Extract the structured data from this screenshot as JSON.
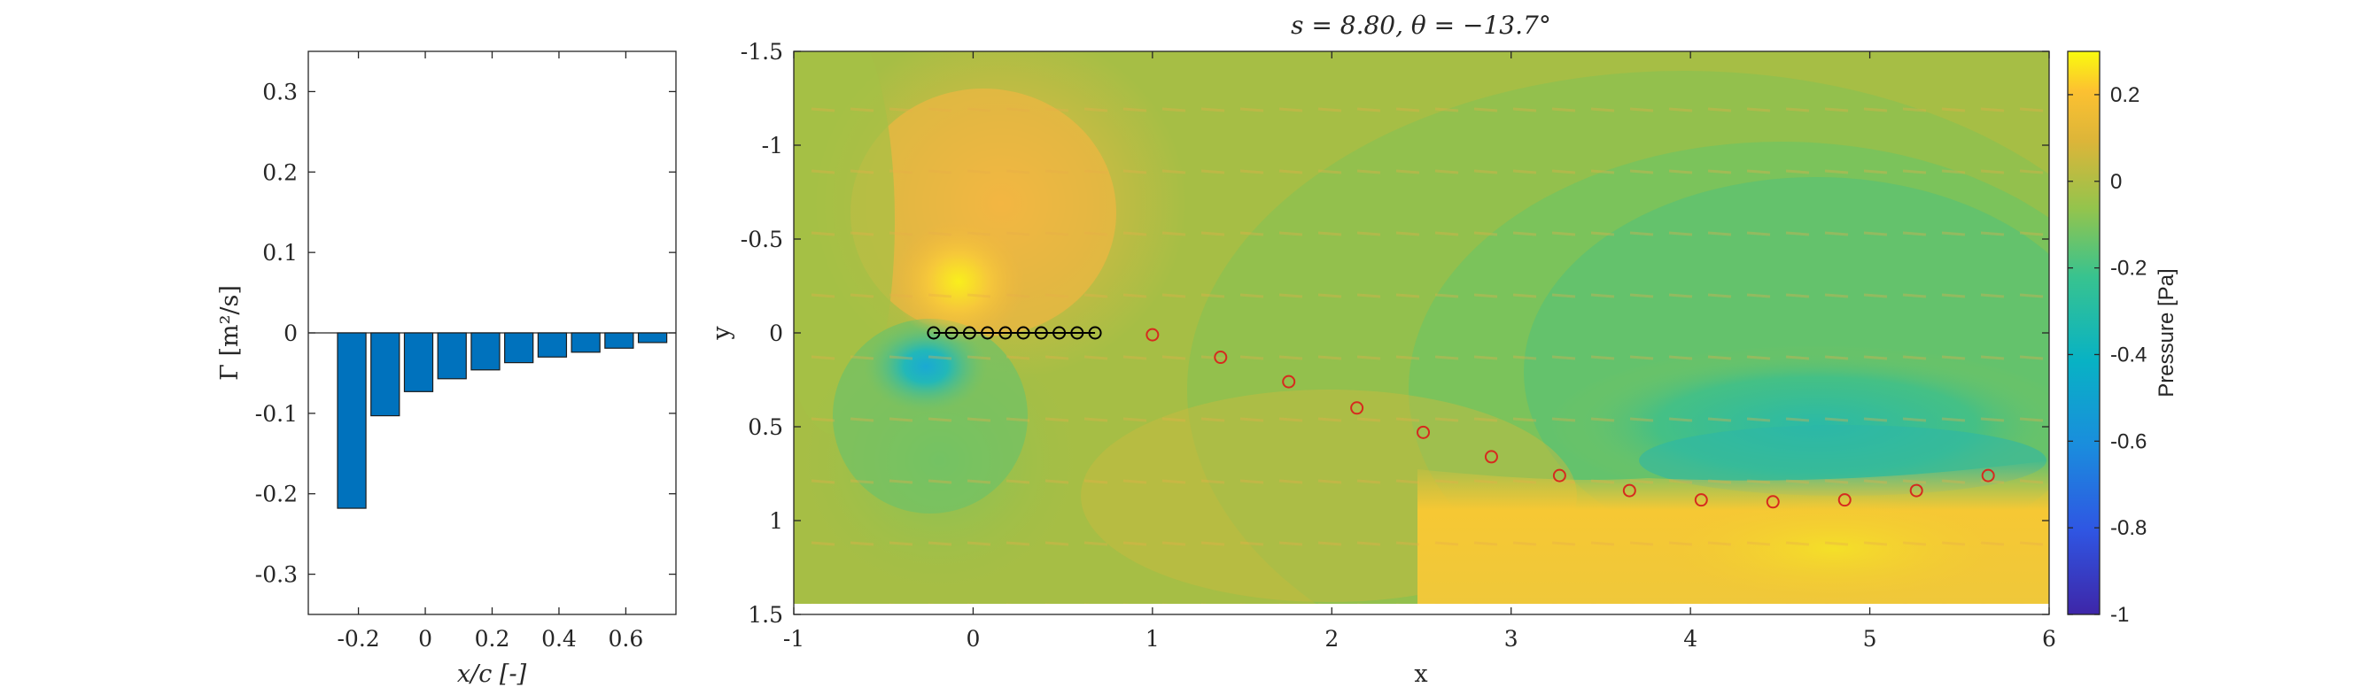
{
  "chart_data": [
    {
      "type": "bar",
      "xlabel": "x/c [-]",
      "ylabel": "Γ [m²/s]",
      "xlim": [
        -0.35,
        0.75
      ],
      "ylim": [
        -0.35,
        0.35
      ],
      "xticks": [
        "-0.2",
        "0",
        "0.2",
        "0.4",
        "0.6"
      ],
      "yticks": [
        "-0.3",
        "-0.2",
        "-0.1",
        "0",
        "0.1",
        "0.2",
        "0.3"
      ],
      "bar_color": "#0072BD",
      "x": [
        -0.22,
        -0.12,
        -0.02,
        0.08,
        0.18,
        0.28,
        0.38,
        0.48,
        0.58,
        0.68
      ],
      "values": [
        -0.218,
        -0.103,
        -0.073,
        -0.057,
        -0.046,
        -0.037,
        -0.03,
        -0.024,
        -0.019,
        -0.012
      ]
    },
    {
      "type": "heatmap",
      "title": "s = 8.80, θ = −13.7°",
      "xlabel": "x",
      "ylabel": "y",
      "xlim": [
        -1,
        6
      ],
      "ylim": [
        -1.5,
        1.5
      ],
      "y_reversed": true,
      "xticks": [
        "-1",
        "0",
        "1",
        "2",
        "3",
        "4",
        "5",
        "6"
      ],
      "yticks": [
        "-1.5",
        "-1",
        "-0.5",
        "0",
        "0.5",
        "1",
        "1.5"
      ],
      "colorbar": {
        "label": "Pressure [Pa]",
        "range": [
          -1,
          0.3
        ],
        "ticks": [
          "0.2",
          "0",
          "-0.2",
          "-0.4",
          "-0.6",
          "-0.8",
          "-1"
        ],
        "colormap": "parula"
      },
      "bound_vortices": {
        "color": "#000000",
        "x": [
          -0.22,
          -0.12,
          -0.02,
          0.08,
          0.18,
          0.28,
          0.38,
          0.48,
          0.58,
          0.68
        ],
        "y": [
          0,
          0,
          0,
          0,
          0,
          0,
          0,
          0,
          0,
          0
        ]
      },
      "wake_vortices": {
        "color": "#d62a1e",
        "x": [
          1.0,
          1.38,
          1.76,
          2.14,
          2.51,
          2.89,
          3.27,
          3.66,
          4.06,
          4.46,
          4.86,
          5.26,
          5.66
        ],
        "y": [
          0.01,
          0.13,
          0.26,
          0.4,
          0.53,
          0.66,
          0.76,
          0.84,
          0.89,
          0.9,
          0.89,
          0.84,
          0.76
        ]
      }
    }
  ]
}
